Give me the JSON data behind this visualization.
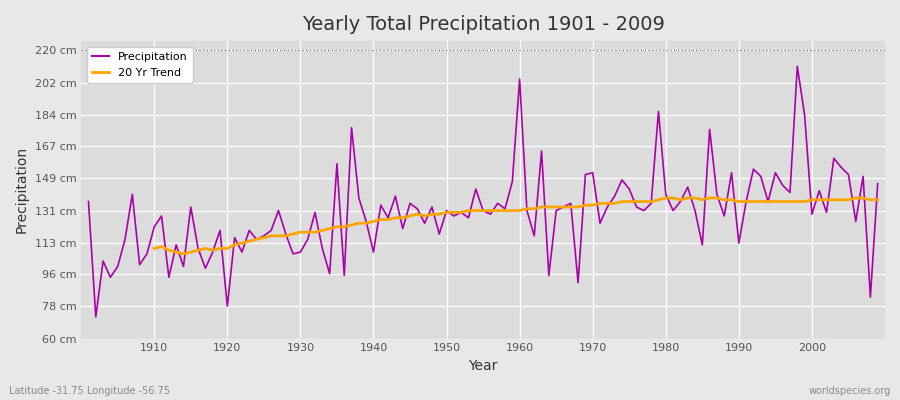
{
  "title": "Yearly Total Precipitation 1901 - 2009",
  "xlabel": "Year",
  "ylabel": "Precipitation",
  "footnote_left": "Latitude -31.75 Longitude -56.75",
  "footnote_right": "worldspecies.org",
  "precip_color": "#aa00aa",
  "trend_color": "#FFA500",
  "bg_color": "#e8e8e8",
  "plot_bg_color": "#dcdcdc",
  "ylim": [
    60,
    225
  ],
  "yticks": [
    60,
    78,
    96,
    113,
    131,
    149,
    167,
    184,
    202,
    220
  ],
  "ytick_labels": [
    "60 cm",
    "78 cm",
    "96 cm",
    "113 cm",
    "131 cm",
    "149 cm",
    "167 cm",
    "184 cm",
    "202 cm",
    "220 cm"
  ],
  "years": [
    1901,
    1902,
    1903,
    1904,
    1905,
    1906,
    1907,
    1908,
    1909,
    1910,
    1911,
    1912,
    1913,
    1914,
    1915,
    1916,
    1917,
    1918,
    1919,
    1920,
    1921,
    1922,
    1923,
    1924,
    1925,
    1926,
    1927,
    1928,
    1929,
    1930,
    1931,
    1932,
    1933,
    1934,
    1935,
    1936,
    1937,
    1938,
    1939,
    1940,
    1941,
    1942,
    1943,
    1944,
    1945,
    1946,
    1947,
    1948,
    1949,
    1950,
    1951,
    1952,
    1953,
    1954,
    1955,
    1956,
    1957,
    1958,
    1959,
    1960,
    1961,
    1962,
    1963,
    1964,
    1965,
    1966,
    1967,
    1968,
    1969,
    1970,
    1971,
    1972,
    1973,
    1974,
    1975,
    1976,
    1977,
    1978,
    1979,
    1980,
    1981,
    1982,
    1983,
    1984,
    1985,
    1986,
    1987,
    1988,
    1989,
    1990,
    1991,
    1992,
    1993,
    1994,
    1995,
    1996,
    1997,
    1998,
    1999,
    2000,
    2001,
    2002,
    2003,
    2004,
    2005,
    2006,
    2007,
    2008,
    2009
  ],
  "precip": [
    136,
    72,
    103,
    94,
    100,
    115,
    140,
    101,
    107,
    122,
    128,
    94,
    112,
    100,
    133,
    110,
    99,
    108,
    120,
    78,
    116,
    108,
    120,
    115,
    117,
    120,
    131,
    118,
    107,
    108,
    115,
    130,
    110,
    96,
    157,
    95,
    177,
    138,
    125,
    108,
    134,
    127,
    139,
    121,
    135,
    132,
    124,
    133,
    118,
    131,
    128,
    130,
    127,
    143,
    131,
    129,
    135,
    132,
    147,
    204,
    131,
    117,
    164,
    95,
    131,
    133,
    135,
    91,
    151,
    152,
    124,
    133,
    139,
    148,
    143,
    133,
    131,
    135,
    186,
    140,
    131,
    136,
    144,
    131,
    112,
    176,
    140,
    128,
    152,
    113,
    136,
    154,
    150,
    136,
    152,
    145,
    141,
    211,
    184,
    129,
    142,
    130,
    160,
    155,
    151,
    125,
    150,
    83,
    146
  ],
  "trend_years": [
    1910,
    1911,
    1912,
    1913,
    1914,
    1915,
    1916,
    1917,
    1918,
    1919,
    1920,
    1921,
    1922,
    1923,
    1924,
    1925,
    1926,
    1927,
    1928,
    1929,
    1930,
    1931,
    1932,
    1933,
    1934,
    1935,
    1936,
    1937,
    1938,
    1939,
    1940,
    1941,
    1942,
    1943,
    1944,
    1945,
    1946,
    1947,
    1948,
    1949,
    1950,
    1951,
    1952,
    1953,
    1954,
    1955,
    1956,
    1957,
    1958,
    1959,
    1960,
    1961,
    1962,
    1963,
    1964,
    1965,
    1966,
    1967,
    1968,
    1969,
    1970,
    1971,
    1972,
    1973,
    1974,
    1975,
    1976,
    1977,
    1978,
    1979,
    1980,
    1981,
    1982,
    1983,
    1984,
    1985,
    1986,
    1987,
    1988,
    1989,
    1990,
    1991,
    1992,
    1993,
    1994,
    1995,
    1996,
    1997,
    1998,
    1999,
    2000,
    2001,
    2002,
    2003,
    2004,
    2005,
    2006,
    2007,
    2008,
    2009
  ],
  "trend_vals": [
    110,
    111,
    109,
    108,
    107,
    108,
    109,
    110,
    109,
    110,
    110,
    112,
    113,
    114,
    115,
    116,
    117,
    117,
    117,
    118,
    119,
    119,
    119,
    120,
    121,
    122,
    122,
    123,
    124,
    124,
    125,
    126,
    126,
    127,
    127,
    128,
    129,
    128,
    129,
    129,
    130,
    130,
    130,
    131,
    131,
    131,
    131,
    131,
    131,
    131,
    131,
    132,
    132,
    133,
    133,
    133,
    133,
    133,
    133,
    134,
    134,
    135,
    135,
    135,
    136,
    136,
    136,
    136,
    136,
    137,
    138,
    138,
    137,
    138,
    138,
    137,
    138,
    138,
    137,
    137,
    136,
    136,
    136,
    136,
    136,
    136,
    136,
    136,
    136,
    136,
    137,
    137,
    137,
    137,
    137,
    137,
    138,
    138,
    137,
    137
  ]
}
